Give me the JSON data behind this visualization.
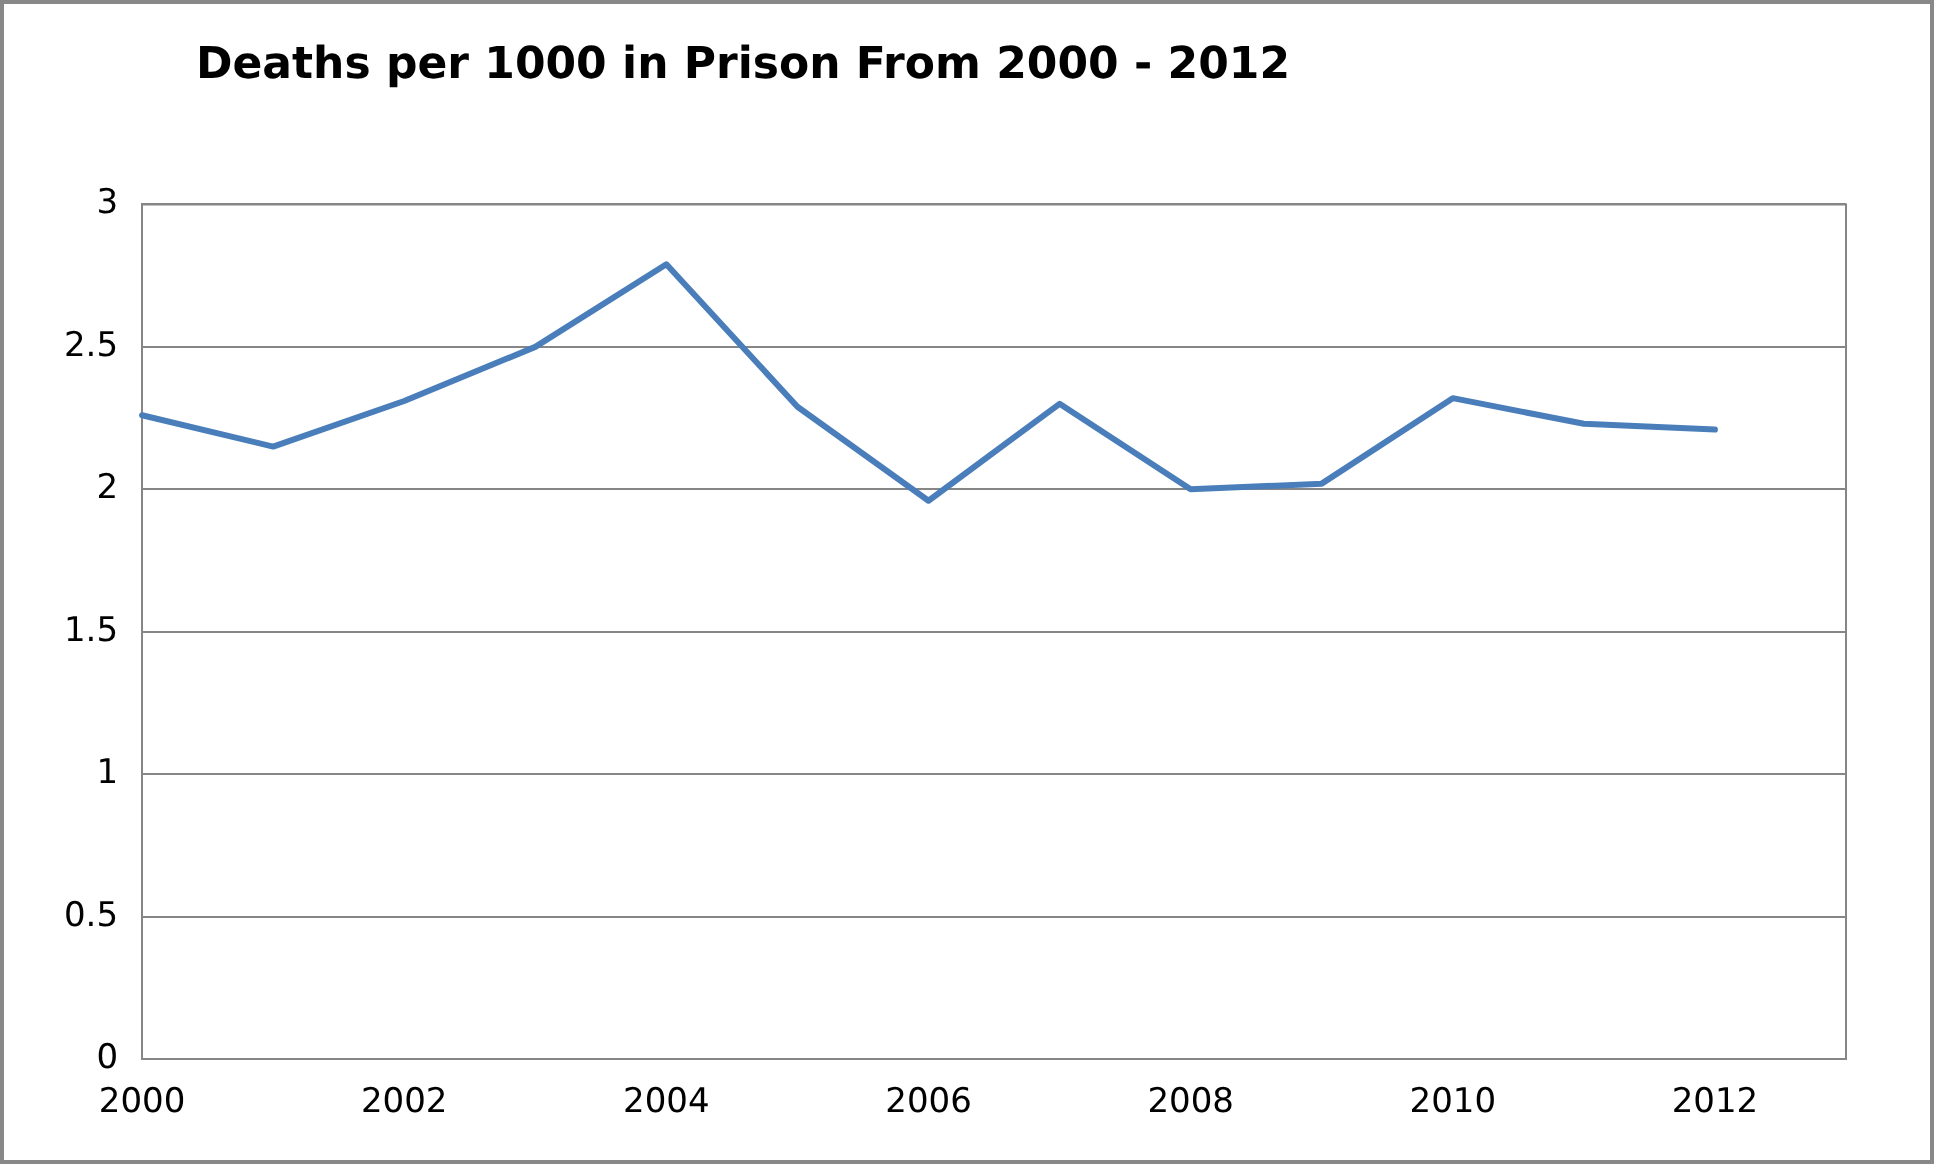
{
  "chart_data": {
    "type": "line",
    "title": "Deaths per 1000 in Prison From 2000 - 2012",
    "x": [
      2000,
      2001,
      2002,
      2003,
      2004,
      2005,
      2006,
      2007,
      2008,
      2009,
      2010,
      2011,
      2012
    ],
    "series": [
      {
        "color": "#4a7ebb",
        "values": [
          2.26,
          2.15,
          2.31,
          2.5,
          2.79,
          2.29,
          1.96,
          2.3,
          2.0,
          2.02,
          2.32,
          2.23,
          2.21
        ]
      }
    ],
    "xlim": [
      2000,
      2013
    ],
    "xticks": [
      2000,
      2002,
      2004,
      2006,
      2008,
      2010,
      2012
    ],
    "ylim": [
      0,
      3
    ],
    "yticks": [
      0,
      0.5,
      1,
      1.5,
      2,
      2.5,
      3
    ],
    "grid": "y",
    "legend": false,
    "marker": "none",
    "line_style": "solid"
  }
}
